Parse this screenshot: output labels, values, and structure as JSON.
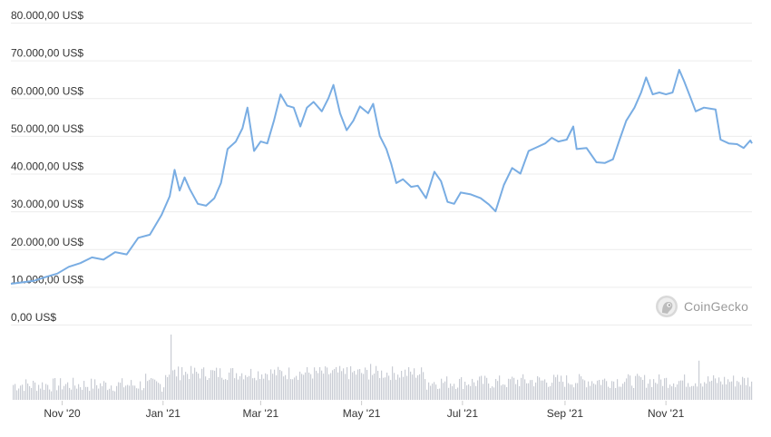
{
  "watermark": {
    "text": "CoinGecko",
    "icon": "coingecko-gecko-icon"
  },
  "colors": {
    "line": "#79ade3",
    "volume": "#c9ccd4",
    "grid": "#ececec"
  },
  "chart_data": {
    "type": "line",
    "title": "",
    "xlabel": "",
    "ylabel": "",
    "ylim": [
      0,
      80000
    ],
    "grid": true,
    "y_ticks": [
      {
        "value": 0,
        "label": "0,00 US$"
      },
      {
        "value": 10000,
        "label": "10.000,00 US$"
      },
      {
        "value": 20000,
        "label": "20.000,00 US$"
      },
      {
        "value": 30000,
        "label": "30.000,00 US$"
      },
      {
        "value": 40000,
        "label": "40.000,00 US$"
      },
      {
        "value": 50000,
        "label": "50.000,00 US$"
      },
      {
        "value": 60000,
        "label": "60.000,00 US$"
      },
      {
        "value": 70000,
        "label": "70.000,00 US$"
      },
      {
        "value": 80000,
        "label": "80.000,00 US$"
      }
    ],
    "x_range": [
      "2020-10-01",
      "2021-12-23"
    ],
    "x_ticks": [
      {
        "date": "2020-11-01",
        "label": "Nov '20"
      },
      {
        "date": "2021-01-01",
        "label": "Jan '21"
      },
      {
        "date": "2021-03-01",
        "label": "Mar '21"
      },
      {
        "date": "2021-05-01",
        "label": "May '21"
      },
      {
        "date": "2021-07-01",
        "label": "Jul '21"
      },
      {
        "date": "2021-09-01",
        "label": "Sep '21"
      },
      {
        "date": "2021-11-01",
        "label": "Nov '21"
      }
    ],
    "series": [
      {
        "values": [
          [
            "2020-10-01",
            10800
          ],
          [
            "2020-10-08",
            11200
          ],
          [
            "2020-10-15",
            11600
          ],
          [
            "2020-10-22",
            12600
          ],
          [
            "2020-10-29",
            13500
          ],
          [
            "2020-11-05",
            15300
          ],
          [
            "2020-11-12",
            16300
          ],
          [
            "2020-11-19",
            17800
          ],
          [
            "2020-11-26",
            17200
          ],
          [
            "2020-12-03",
            19200
          ],
          [
            "2020-12-10",
            18600
          ],
          [
            "2020-12-17",
            23000
          ],
          [
            "2020-12-24",
            23800
          ],
          [
            "2020-12-31",
            29000
          ],
          [
            "2021-01-05",
            34000
          ],
          [
            "2021-01-08",
            41000
          ],
          [
            "2021-01-11",
            35500
          ],
          [
            "2021-01-14",
            39000
          ],
          [
            "2021-01-17",
            36000
          ],
          [
            "2021-01-22",
            32000
          ],
          [
            "2021-01-27",
            31500
          ],
          [
            "2021-02-01",
            33500
          ],
          [
            "2021-02-05",
            37500
          ],
          [
            "2021-02-09",
            46500
          ],
          [
            "2021-02-14",
            48500
          ],
          [
            "2021-02-18",
            52000
          ],
          [
            "2021-02-21",
            57500
          ],
          [
            "2021-02-25",
            46000
          ],
          [
            "2021-03-01",
            48500
          ],
          [
            "2021-03-05",
            48000
          ],
          [
            "2021-03-09",
            54000
          ],
          [
            "2021-03-13",
            61000
          ],
          [
            "2021-03-17",
            58000
          ],
          [
            "2021-03-21",
            57500
          ],
          [
            "2021-03-25",
            52500
          ],
          [
            "2021-03-29",
            57500
          ],
          [
            "2021-04-02",
            59000
          ],
          [
            "2021-04-07",
            56500
          ],
          [
            "2021-04-11",
            60000
          ],
          [
            "2021-04-14",
            63500
          ],
          [
            "2021-04-18",
            56000
          ],
          [
            "2021-04-22",
            51500
          ],
          [
            "2021-04-26",
            54000
          ],
          [
            "2021-04-30",
            57800
          ],
          [
            "2021-05-05",
            56000
          ],
          [
            "2021-05-08",
            58500
          ],
          [
            "2021-05-12",
            50000
          ],
          [
            "2021-05-16",
            46500
          ],
          [
            "2021-05-19",
            42500
          ],
          [
            "2021-05-22",
            37500
          ],
          [
            "2021-05-26",
            38500
          ],
          [
            "2021-05-31",
            36500
          ],
          [
            "2021-06-04",
            36800
          ],
          [
            "2021-06-09",
            33500
          ],
          [
            "2021-06-14",
            40500
          ],
          [
            "2021-06-18",
            38000
          ],
          [
            "2021-06-22",
            32500
          ],
          [
            "2021-06-26",
            32000
          ],
          [
            "2021-06-30",
            35000
          ],
          [
            "2021-07-06",
            34500
          ],
          [
            "2021-07-12",
            33500
          ],
          [
            "2021-07-17",
            31800
          ],
          [
            "2021-07-21",
            30000
          ],
          [
            "2021-07-26",
            37000
          ],
          [
            "2021-07-31",
            41500
          ],
          [
            "2021-08-05",
            40000
          ],
          [
            "2021-08-10",
            46000
          ],
          [
            "2021-08-15",
            47000
          ],
          [
            "2021-08-20",
            48000
          ],
          [
            "2021-08-24",
            49500
          ],
          [
            "2021-08-28",
            48500
          ],
          [
            "2021-09-02",
            49000
          ],
          [
            "2021-09-06",
            52500
          ],
          [
            "2021-09-08",
            46500
          ],
          [
            "2021-09-14",
            46800
          ],
          [
            "2021-09-20",
            43000
          ],
          [
            "2021-09-25",
            42800
          ],
          [
            "2021-09-30",
            43800
          ],
          [
            "2021-10-04",
            49000
          ],
          [
            "2021-10-08",
            54000
          ],
          [
            "2021-10-13",
            57500
          ],
          [
            "2021-10-17",
            61500
          ],
          [
            "2021-10-20",
            65500
          ],
          [
            "2021-10-24",
            61000
          ],
          [
            "2021-10-28",
            61500
          ],
          [
            "2021-11-01",
            61000
          ],
          [
            "2021-11-05",
            61500
          ],
          [
            "2021-11-09",
            67500
          ],
          [
            "2021-11-12",
            64500
          ],
          [
            "2021-11-16",
            60000
          ],
          [
            "2021-11-19",
            56500
          ],
          [
            "2021-11-24",
            57500
          ],
          [
            "2021-11-28",
            57200
          ],
          [
            "2021-12-01",
            57000
          ],
          [
            "2021-12-04",
            49000
          ],
          [
            "2021-12-09",
            48000
          ],
          [
            "2021-12-14",
            47800
          ],
          [
            "2021-12-18",
            46800
          ],
          [
            "2021-12-22",
            48800
          ],
          [
            "2021-12-23",
            48000
          ]
        ]
      }
    ]
  }
}
